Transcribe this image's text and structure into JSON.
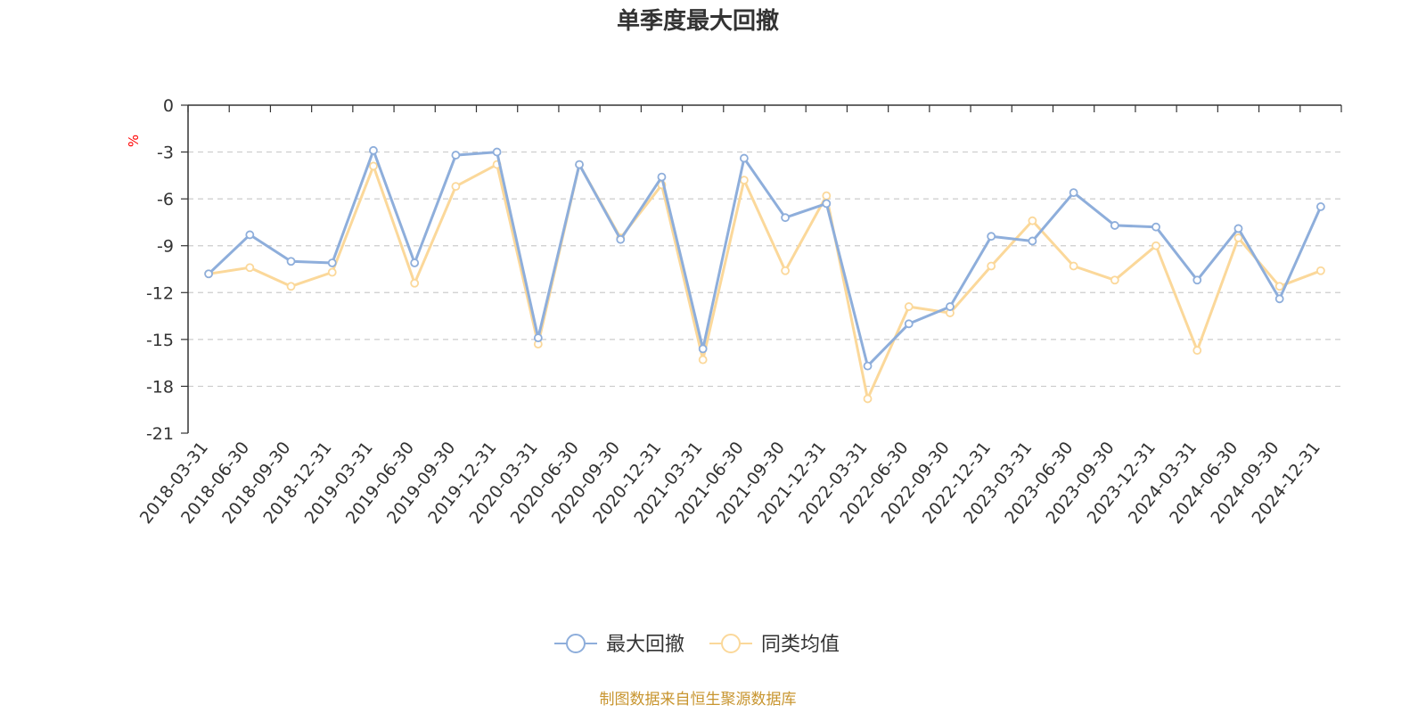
{
  "chart_data": {
    "type": "line",
    "title": "单季度最大回撤",
    "y_unit": "%",
    "ylim": [
      -21,
      0
    ],
    "yticks": [
      0,
      -3,
      -6,
      -9,
      -12,
      -15,
      -18,
      -21
    ],
    "grid": true,
    "legend_position": "bottom-center",
    "categories": [
      "2018-03-31",
      "2018-06-30",
      "2018-09-30",
      "2018-12-31",
      "2019-03-31",
      "2019-06-30",
      "2019-09-30",
      "2019-12-31",
      "2020-03-31",
      "2020-06-30",
      "2020-09-30",
      "2020-12-31",
      "2021-03-31",
      "2021-06-30",
      "2021-09-30",
      "2021-12-31",
      "2022-03-31",
      "2022-06-30",
      "2022-09-30",
      "2022-12-31",
      "2023-03-31",
      "2023-06-30",
      "2023-09-30",
      "2023-12-31",
      "2024-03-31",
      "2024-06-30",
      "2024-09-30",
      "2024-12-31"
    ],
    "series": [
      {
        "name": "最大回撤",
        "color": "#8eaedb",
        "values": [
          -10.8,
          -8.3,
          -10.0,
          -10.1,
          -2.9,
          -10.1,
          -3.2,
          -3.0,
          -14.9,
          -3.8,
          -8.6,
          -4.6,
          -15.6,
          -3.4,
          -7.2,
          -6.3,
          -16.7,
          -14.0,
          -12.9,
          -8.4,
          -8.7,
          -5.6,
          -7.7,
          -7.8,
          -11.2,
          -7.9,
          -12.4,
          -6.5
        ]
      },
      {
        "name": "同类均值",
        "color": "#fbd89a",
        "values": [
          -10.8,
          -10.4,
          -11.6,
          -10.7,
          -3.9,
          -11.4,
          -5.2,
          -3.8,
          -15.3,
          -3.8,
          -8.5,
          -5.1,
          -16.3,
          -4.8,
          -10.6,
          -5.8,
          -18.8,
          -12.9,
          -13.3,
          -10.3,
          -7.4,
          -10.3,
          -11.2,
          -9.0,
          -15.7,
          -8.5,
          -11.6,
          -10.6
        ]
      }
    ]
  },
  "source_text": "制图数据来自恒生聚源数据库"
}
